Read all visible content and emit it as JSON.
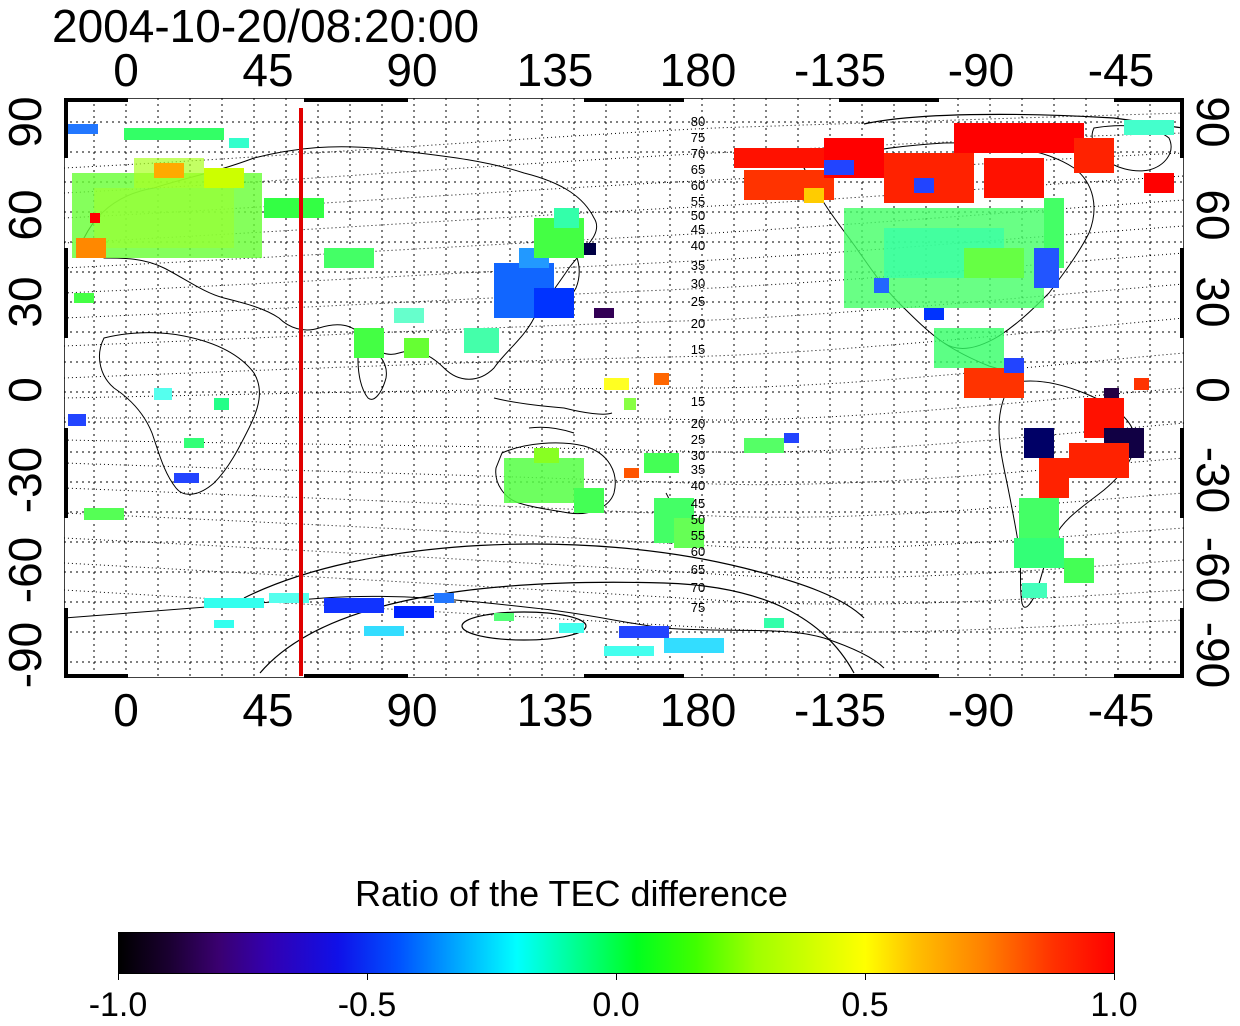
{
  "title": "2004-10-20/08:20:00",
  "lon_labels": [
    "0",
    "45",
    "90",
    "135",
    "180",
    "-135",
    "-90",
    "-45"
  ],
  "lat_labels": [
    "90",
    "60",
    "30",
    "0",
    "-30",
    "-60",
    "-90"
  ],
  "contour_labels": {
    "north": [
      "80",
      "75",
      "70",
      "65",
      "60",
      "55",
      "50",
      "45",
      "40",
      "35",
      "30",
      "25",
      "20",
      "15"
    ],
    "south": [
      "15",
      "20",
      "25",
      "30",
      "35",
      "40",
      "45",
      "50",
      "55",
      "60",
      "65",
      "70",
      "75"
    ]
  },
  "colorbar": {
    "title": "Ratio of the TEC difference",
    "tick_labels": [
      "-1.0",
      "-0.5",
      "0.0",
      "0.5",
      "1.0"
    ],
    "range": [
      -1.0,
      1.0
    ]
  },
  "colors": {
    "marker_line": "#e00000",
    "positive": "#ff0000",
    "neutral": "#00ff40",
    "negative": "#0000ff"
  }
}
